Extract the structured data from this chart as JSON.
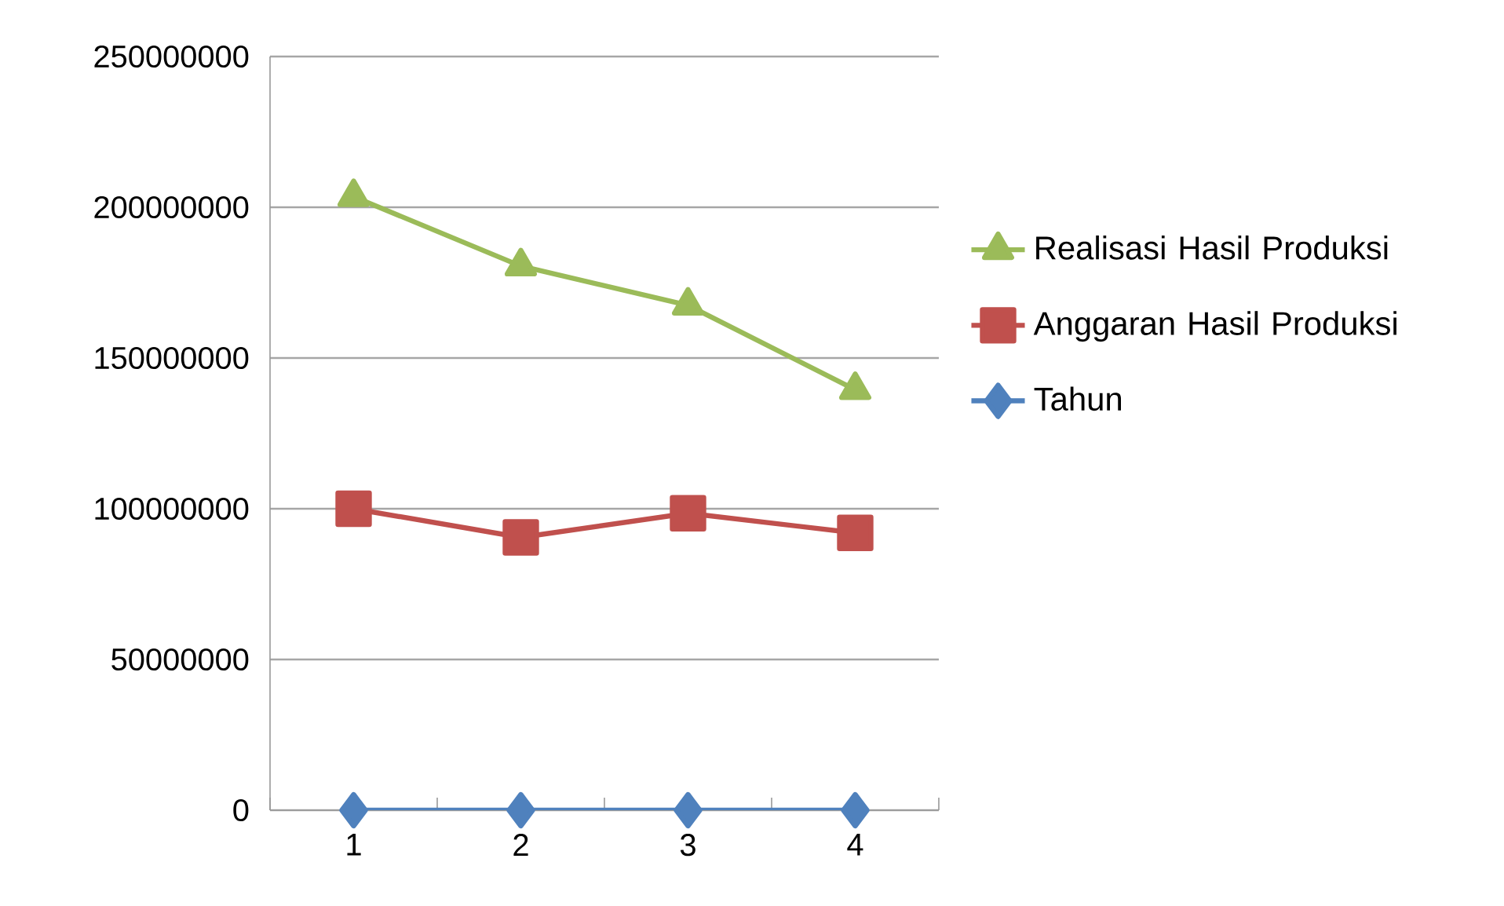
{
  "chart_data": {
    "type": "line",
    "categories": [
      "1",
      "2",
      "3",
      "4"
    ],
    "series": [
      {
        "name": "Realisasi Hasil Produksi",
        "color": "#9bbb59",
        "marker": "triangle",
        "values": [
          203500000,
          180500000,
          167500000,
          139500000
        ]
      },
      {
        "name": "Anggaran Hasil Produksi",
        "color": "#c0504d",
        "marker": "square",
        "values": [
          100000000,
          90500000,
          98500000,
          92000000
        ]
      },
      {
        "name": "Tahun",
        "color": "#4f81bd",
        "marker": "diamond",
        "values": [
          0,
          0,
          0,
          0
        ]
      }
    ],
    "ylim": [
      0,
      250000000
    ],
    "yticks": [
      0,
      50000000,
      100000000,
      150000000,
      200000000,
      250000000
    ],
    "grid": "y",
    "legend": "right"
  }
}
